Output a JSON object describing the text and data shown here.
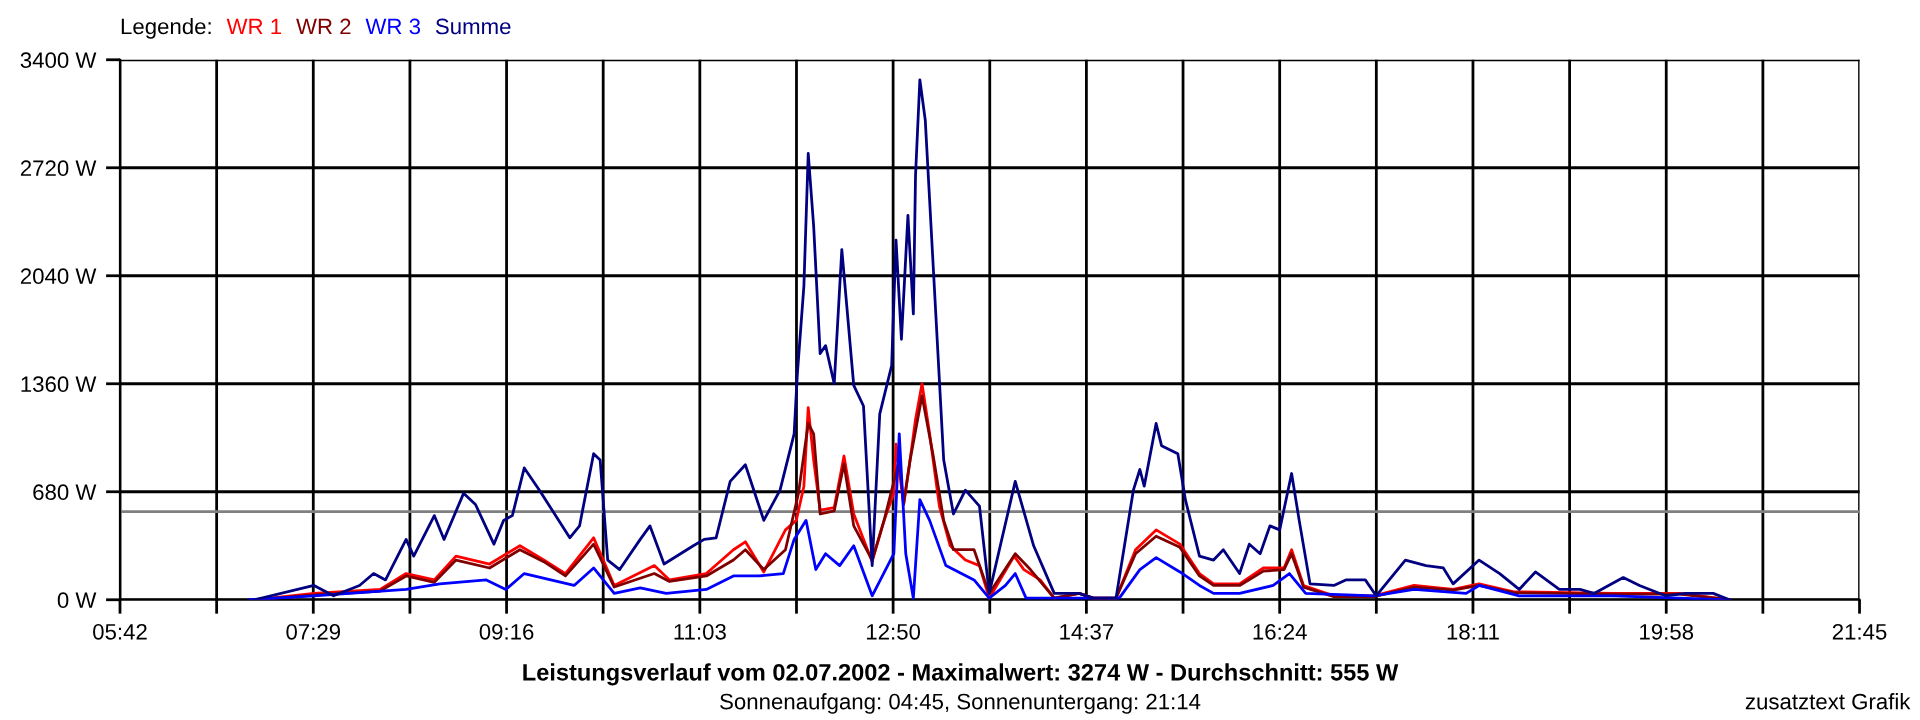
{
  "chart_data": {
    "type": "line",
    "title": "Leistungsverlauf vom 02.07.2002 - Maximalwert: 3274 W - Durchschnitt: 555 W",
    "subtitle": "Sonnenaufgang: 04:45, Sonnenuntergang: 21:14",
    "legend_title": "Legende:",
    "annotations": [
      "zusatztext Grafik"
    ],
    "legend": "top left",
    "grid": true,
    "xlim": [
      5.7,
      21.75
    ],
    "xticks": [
      {
        "value": 5.7,
        "label": "05:42"
      },
      {
        "value": 6.5917,
        "label": null
      },
      {
        "value": 7.4833,
        "label": "07:29"
      },
      {
        "value": 8.375,
        "label": null
      },
      {
        "value": 9.2667,
        "label": "09:16"
      },
      {
        "value": 10.1583,
        "label": null
      },
      {
        "value": 11.05,
        "label": "11:03"
      },
      {
        "value": 11.9417,
        "label": null
      },
      {
        "value": 12.8333,
        "label": "12:50"
      },
      {
        "value": 13.725,
        "label": null
      },
      {
        "value": 14.6167,
        "label": "14:37"
      },
      {
        "value": 15.5083,
        "label": null
      },
      {
        "value": 16.4,
        "label": "16:24"
      },
      {
        "value": 17.2917,
        "label": null
      },
      {
        "value": 18.1833,
        "label": "18:11"
      },
      {
        "value": 19.075,
        "label": null
      },
      {
        "value": 19.9667,
        "label": "19:58"
      },
      {
        "value": 20.8583,
        "label": null
      },
      {
        "value": 21.75,
        "label": "21:45"
      }
    ],
    "ylim": [
      0,
      3400
    ],
    "yticks": [
      {
        "value": 0,
        "label": "0 W"
      },
      {
        "value": 680,
        "label": "680 W"
      },
      {
        "value": 1360,
        "label": "1360 W"
      },
      {
        "value": 2040,
        "label": "2040 W"
      },
      {
        "value": 2720,
        "label": "2720 W"
      },
      {
        "value": 3400,
        "label": "3400 W"
      }
    ],
    "ref_lines": [
      {
        "axis": "y",
        "value": 555,
        "color": "#808080"
      }
    ],
    "series": [
      {
        "name": "WR 1",
        "color": "#ff0000",
        "x": [
          6.94,
          7.49,
          8.1,
          8.34,
          8.6,
          8.8,
          9.11,
          9.39,
          9.61,
          9.81,
          10.07,
          10.26,
          10.63,
          10.77,
          11.11,
          11.36,
          11.47,
          11.64,
          11.84,
          11.94,
          12.01,
          12.05,
          12.1,
          12.16,
          12.29,
          12.38,
          12.47,
          12.64,
          12.75,
          12.84,
          12.86,
          12.93,
          12.99,
          13.04,
          13.1,
          13.17,
          13.26,
          13.36,
          13.5,
          13.63,
          13.72,
          13.95,
          14.04,
          14.19,
          14.32,
          14.55,
          14.68,
          14.89,
          15.07,
          15.26,
          15.48,
          15.66,
          15.79,
          16.03,
          16.25,
          16.44,
          16.51,
          16.62,
          16.9,
          17.27,
          17.64,
          18.0,
          18.24,
          18.56,
          19.48,
          20.09,
          20.55
        ],
        "values": [
          0,
          40,
          65,
          165,
          125,
          275,
          225,
          340,
          250,
          165,
          390,
          90,
          215,
          125,
          165,
          315,
          365,
          175,
          440,
          500,
          715,
          1210,
          880,
          565,
          580,
          905,
          540,
          240,
          500,
          670,
          980,
          600,
          880,
          1135,
          1360,
          1045,
          590,
          340,
          250,
          215,
          10,
          275,
          190,
          125,
          10,
          40,
          10,
          10,
          315,
          440,
          350,
          165,
          100,
          100,
          200,
          200,
          315,
          90,
          25,
          25,
          90,
          65,
          100,
          50,
          40,
          40,
          0
        ]
      },
      {
        "name": "WR 2",
        "color": "#800000",
        "x": [
          6.94,
          7.49,
          8.1,
          8.34,
          8.6,
          8.8,
          9.11,
          9.39,
          9.61,
          9.81,
          10.07,
          10.26,
          10.63,
          10.77,
          11.11,
          11.36,
          11.47,
          11.64,
          11.84,
          11.96,
          12.05,
          12.1,
          12.16,
          12.29,
          12.38,
          12.47,
          12.64,
          12.75,
          12.89,
          12.93,
          12.99,
          13.1,
          13.2,
          13.3,
          13.39,
          13.58,
          13.72,
          13.96,
          14.1,
          14.32,
          14.55,
          14.68,
          14.89,
          15.07,
          15.26,
          15.48,
          15.66,
          15.79,
          16.03,
          16.25,
          16.44,
          16.51,
          16.62,
          16.9,
          17.27,
          17.64,
          18.0,
          18.24,
          18.56,
          19.48,
          20.09,
          20.55
        ],
        "values": [
          0,
          30,
          55,
          150,
          110,
          250,
          200,
          315,
          240,
          150,
          350,
          80,
          165,
          115,
          150,
          250,
          315,
          190,
          315,
          670,
          1110,
          1045,
          540,
          560,
          855,
          465,
          250,
          500,
          880,
          600,
          880,
          1285,
          920,
          500,
          315,
          315,
          40,
          290,
          190,
          10,
          40,
          10,
          10,
          290,
          400,
          330,
          150,
          90,
          90,
          180,
          190,
          290,
          80,
          20,
          20,
          80,
          60,
          90,
          45,
          35,
          35,
          0
        ]
      },
      {
        "name": "WR 3",
        "color": "#0000ff",
        "x": [
          6.9,
          7.49,
          8.34,
          8.65,
          9.08,
          9.26,
          9.43,
          9.89,
          10.07,
          10.26,
          10.5,
          10.74,
          11.11,
          11.36,
          11.6,
          11.82,
          11.92,
          12.03,
          12.12,
          12.21,
          12.34,
          12.47,
          12.64,
          12.84,
          12.89,
          12.95,
          13.02,
          13.08,
          13.17,
          13.32,
          13.58,
          13.72,
          13.87,
          13.96,
          14.06,
          14.32,
          14.92,
          15.11,
          15.26,
          15.48,
          15.66,
          15.79,
          16.03,
          16.34,
          16.49,
          16.64,
          17.27,
          17.64,
          18.12,
          18.24,
          18.61,
          19.48,
          20.55
        ],
        "values": [
          0,
          25,
          65,
          100,
          125,
          65,
          165,
          90,
          200,
          40,
          75,
          40,
          65,
          150,
          150,
          165,
          380,
          500,
          190,
          290,
          215,
          340,
          25,
          290,
          1045,
          290,
          10,
          630,
          500,
          215,
          125,
          10,
          90,
          165,
          10,
          10,
          10,
          190,
          265,
          175,
          90,
          40,
          40,
          90,
          165,
          40,
          25,
          65,
          40,
          90,
          25,
          25,
          0
        ]
      },
      {
        "name": "Summe",
        "color": "#000080",
        "x": [
          6.94,
          7.49,
          7.67,
          7.91,
          8.04,
          8.15,
          8.34,
          8.41,
          8.6,
          8.69,
          8.87,
          8.98,
          9.15,
          9.24,
          9.32,
          9.43,
          9.57,
          9.85,
          9.94,
          10.07,
          10.13,
          10.2,
          10.31,
          10.5,
          10.59,
          10.72,
          10.99,
          11.09,
          11.2,
          11.33,
          11.47,
          11.64,
          11.79,
          11.92,
          11.95,
          12.01,
          12.05,
          12.1,
          12.16,
          12.21,
          12.29,
          12.36,
          12.47,
          12.56,
          12.64,
          12.71,
          12.82,
          12.86,
          12.91,
          12.97,
          13.02,
          13.04,
          13.08,
          13.13,
          13.21,
          13.3,
          13.39,
          13.5,
          13.63,
          13.72,
          13.96,
          14.13,
          14.32,
          14.55,
          14.68,
          14.89,
          15.05,
          15.11,
          15.15,
          15.26,
          15.31,
          15.46,
          15.53,
          15.66,
          15.79,
          15.88,
          16.03,
          16.12,
          16.22,
          16.31,
          16.4,
          16.51,
          16.58,
          16.68,
          16.9,
          17.01,
          17.19,
          17.29,
          17.56,
          17.75,
          17.91,
          18.0,
          18.24,
          18.43,
          18.61,
          18.76,
          18.98,
          19.17,
          19.3,
          19.57,
          19.72,
          19.96,
          20.14,
          20.4,
          20.55
        ],
        "values": [
          0,
          90,
          25,
          90,
          165,
          125,
          380,
          275,
          530,
          380,
          670,
          600,
          350,
          500,
          530,
          830,
          690,
          390,
          465,
          920,
          880,
          250,
          190,
          380,
          465,
          225,
          340,
          380,
          390,
          745,
          850,
          500,
          690,
          1045,
          1425,
          1975,
          2810,
          2355,
          1550,
          1600,
          1360,
          2205,
          1350,
          1220,
          215,
          1170,
          1475,
          2265,
          1640,
          2420,
          1800,
          2670,
          3274,
          3020,
          2015,
          880,
          540,
          690,
          590,
          40,
          745,
          340,
          40,
          40,
          10,
          10,
          690,
          820,
          715,
          1110,
          970,
          920,
          630,
          275,
          250,
          315,
          165,
          350,
          290,
          465,
          440,
          795,
          500,
          100,
          90,
          125,
          125,
          25,
          250,
          215,
          200,
          100,
          250,
          165,
          65,
          175,
          65,
          65,
          40,
          140,
          90,
          25,
          40,
          40,
          0
        ]
      }
    ]
  }
}
